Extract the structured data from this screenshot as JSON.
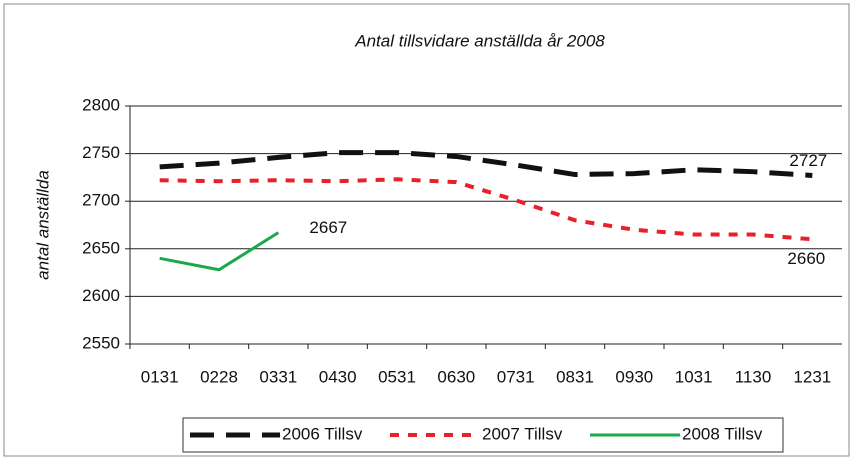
{
  "chart_data": {
    "type": "line",
    "title": "Antal tillsvidare anställda år 2008",
    "ylabel": "antal anställda",
    "categories": [
      "0131",
      "0228",
      "0331",
      "0430",
      "0531",
      "0630",
      "0731",
      "0831",
      "0930",
      "1031",
      "1130",
      "1231"
    ],
    "series": [
      {
        "name": "2006 Tillsv",
        "color": "#111111",
        "style": "dashed",
        "values": [
          2736,
          2740,
          2746,
          2751,
          2751,
          2747,
          2738,
          2728,
          2729,
          2733,
          2731,
          2727
        ]
      },
      {
        "name": "2007 Tillsv",
        "color": "#e8202a",
        "style": "dotted",
        "values": [
          2722,
          2721,
          2722,
          2721,
          2723,
          2720,
          2701,
          2680,
          2670,
          2665,
          2665,
          2660
        ]
      },
      {
        "name": "2008 Tillsv",
        "color": "#1aa84a",
        "style": "solid",
        "values": [
          2640,
          2628,
          2667,
          null,
          null,
          null,
          null,
          null,
          null,
          null,
          null,
          null
        ]
      }
    ],
    "ylim": [
      2550,
      2800
    ],
    "yticks": [
      2550,
      2600,
      2650,
      2700,
      2750,
      2800
    ],
    "grid": true,
    "legend": "bottom"
  }
}
